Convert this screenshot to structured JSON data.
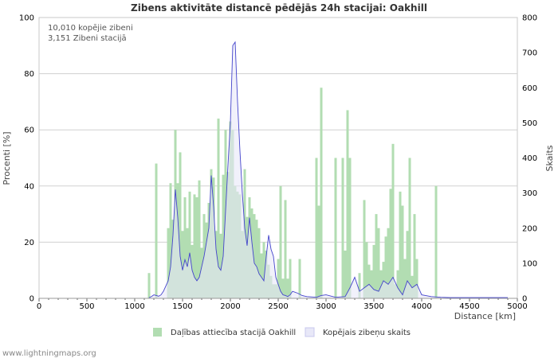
{
  "chart_data": {
    "type": "bar",
    "title": "Zibens aktivitāte distancē pēdējās 24h stacijai: Oakhill",
    "xlabel": "Distance   [km]",
    "ylabel_left": "Procenti   [%]",
    "ylabel_right": "Skaits",
    "xlim": [
      0,
      5000
    ],
    "ylim_left": [
      0,
      100
    ],
    "ylim_right": [
      0,
      800
    ],
    "x_ticks": [
      "0",
      "500",
      "1000",
      "1500",
      "2000",
      "2500",
      "3000",
      "3500",
      "4000",
      "4500",
      "5000"
    ],
    "y_left_ticks": [
      "0",
      "20",
      "40",
      "60",
      "80",
      "100"
    ],
    "y_right_ticks": [
      "0",
      "100",
      "200",
      "300",
      "400",
      "500",
      "600",
      "700",
      "800"
    ],
    "annotation": [
      "10,010 kopējie zibeni",
      "3,151 Zibeni stacijā"
    ],
    "legend": [
      "Daļības attiecība stacijā Oakhill",
      "Kopējais zibeņu skaits"
    ],
    "colors": {
      "bar": "#b2ddb2",
      "line": "#4444cc",
      "line_fill": "#e8e8f8",
      "grid": "#d0d0d0"
    },
    "series": [
      {
        "name": "Daļības attiecība stacijā Oakhill",
        "unit": "%",
        "x": [
          1150,
          1225,
          1350,
          1375,
          1400,
          1425,
          1450,
          1475,
          1500,
          1525,
          1550,
          1575,
          1600,
          1625,
          1650,
          1675,
          1700,
          1725,
          1750,
          1775,
          1800,
          1825,
          1850,
          1875,
          1900,
          1925,
          1950,
          1975,
          2000,
          2025,
          2050,
          2075,
          2100,
          2125,
          2150,
          2175,
          2200,
          2225,
          2250,
          2275,
          2300,
          2325,
          2350,
          2375,
          2400,
          2425,
          2450,
          2475,
          2500,
          2525,
          2550,
          2575,
          2600,
          2625,
          2725,
          2900,
          2925,
          2950,
          3100,
          3175,
          3200,
          3225,
          3250,
          3350,
          3400,
          3425,
          3450,
          3475,
          3500,
          3525,
          3550,
          3575,
          3600,
          3625,
          3650,
          3675,
          3700,
          3725,
          3750,
          3775,
          3800,
          3825,
          3850,
          3875,
          3900,
          3925,
          3950,
          4150
        ],
        "values": [
          9,
          48,
          25,
          41,
          28,
          60,
          41,
          52,
          24,
          36,
          25,
          38,
          19,
          37,
          36,
          42,
          18,
          30,
          27,
          34,
          46,
          43,
          24,
          64,
          23,
          44,
          60,
          45,
          63,
          60,
          40,
          38,
          37,
          24,
          46,
          29,
          36,
          32,
          30,
          28,
          25,
          16,
          20,
          17,
          12,
          8,
          5,
          5,
          14,
          40,
          7,
          35,
          7,
          14,
          14,
          50,
          33,
          75,
          50,
          50,
          17,
          67,
          50,
          9,
          35,
          20,
          12,
          10,
          19,
          30,
          25,
          10,
          13,
          22,
          25,
          39,
          55,
          5,
          10,
          38,
          33,
          14,
          24,
          50,
          8,
          30,
          14,
          40
        ]
      },
      {
        "name": "Kopējais zibeņu skaits",
        "unit": "skaits",
        "x": [
          1150,
          1175,
          1200,
          1225,
          1250,
          1275,
          1300,
          1325,
          1350,
          1375,
          1400,
          1425,
          1450,
          1475,
          1500,
          1525,
          1550,
          1575,
          1600,
          1625,
          1650,
          1675,
          1700,
          1725,
          1750,
          1775,
          1800,
          1825,
          1850,
          1875,
          1900,
          1925,
          1950,
          1975,
          2000,
          2025,
          2050,
          2075,
          2100,
          2125,
          2150,
          2175,
          2200,
          2225,
          2250,
          2275,
          2300,
          2325,
          2350,
          2375,
          2400,
          2425,
          2450,
          2475,
          2500,
          2525,
          2550,
          2575,
          2600,
          2625,
          2650,
          2700,
          2750,
          2800,
          2900,
          2950,
          3000,
          3100,
          3200,
          3250,
          3300,
          3350,
          3400,
          3450,
          3500,
          3550,
          3600,
          3650,
          3700,
          3750,
          3800,
          3850,
          3900,
          3950,
          4000,
          4100,
          4200,
          4300,
          4500,
          4700,
          4900
        ],
        "values": [
          2,
          5,
          10,
          8,
          6,
          10,
          20,
          35,
          50,
          90,
          180,
          310,
          230,
          120,
          80,
          110,
          90,
          130,
          80,
          60,
          50,
          60,
          90,
          120,
          160,
          200,
          350,
          260,
          140,
          90,
          80,
          120,
          250,
          380,
          500,
          720,
          730,
          560,
          420,
          300,
          200,
          150,
          230,
          160,
          100,
          90,
          70,
          60,
          50,
          120,
          180,
          140,
          120,
          60,
          40,
          20,
          10,
          8,
          5,
          10,
          20,
          15,
          8,
          5,
          3,
          8,
          10,
          3,
          5,
          30,
          60,
          20,
          30,
          40,
          25,
          20,
          50,
          40,
          60,
          30,
          10,
          50,
          30,
          40,
          10,
          5,
          3,
          2,
          2,
          2,
          2
        ]
      }
    ]
  },
  "footer": "www.lightningmaps.org"
}
